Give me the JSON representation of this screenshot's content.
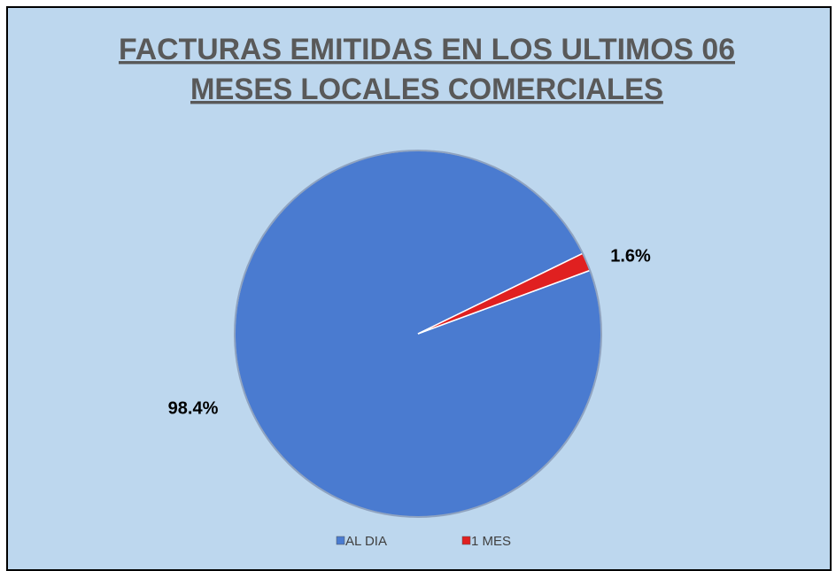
{
  "chart_data": {
    "type": "pie",
    "title": [
      "FACTURAS EMITIDAS EN LOS ULTIMOS 06",
      "MESES  LOCALES COMERCIALES"
    ],
    "categories": [
      "AL DIA",
      "1 MES"
    ],
    "values": [
      98.4,
      1.6
    ],
    "value_labels": [
      "98.4%",
      "1.6%"
    ],
    "colors": [
      "#4a7bd0",
      "#e02020"
    ],
    "legend": "bottom"
  }
}
